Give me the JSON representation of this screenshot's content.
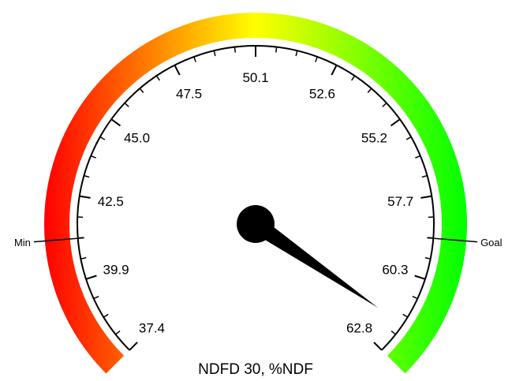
{
  "chart_data": {
    "type": "gauge",
    "title": "NDFD 30, %NDF",
    "min": 37.4,
    "max": 62.8,
    "value": 61.8,
    "tick_labels": [
      "37.4",
      "39.9",
      "42.5",
      "45.0",
      "47.5",
      "50.1",
      "52.6",
      "55.2",
      "57.7",
      "60.3",
      "62.8"
    ],
    "markers": [
      {
        "label": "Min",
        "value": 41.2
      },
      {
        "label": "Goal",
        "value": 59.0
      }
    ],
    "band_colors": {
      "low": "#ff0000",
      "mid": "#ffff00",
      "high": "#00ff00"
    }
  }
}
